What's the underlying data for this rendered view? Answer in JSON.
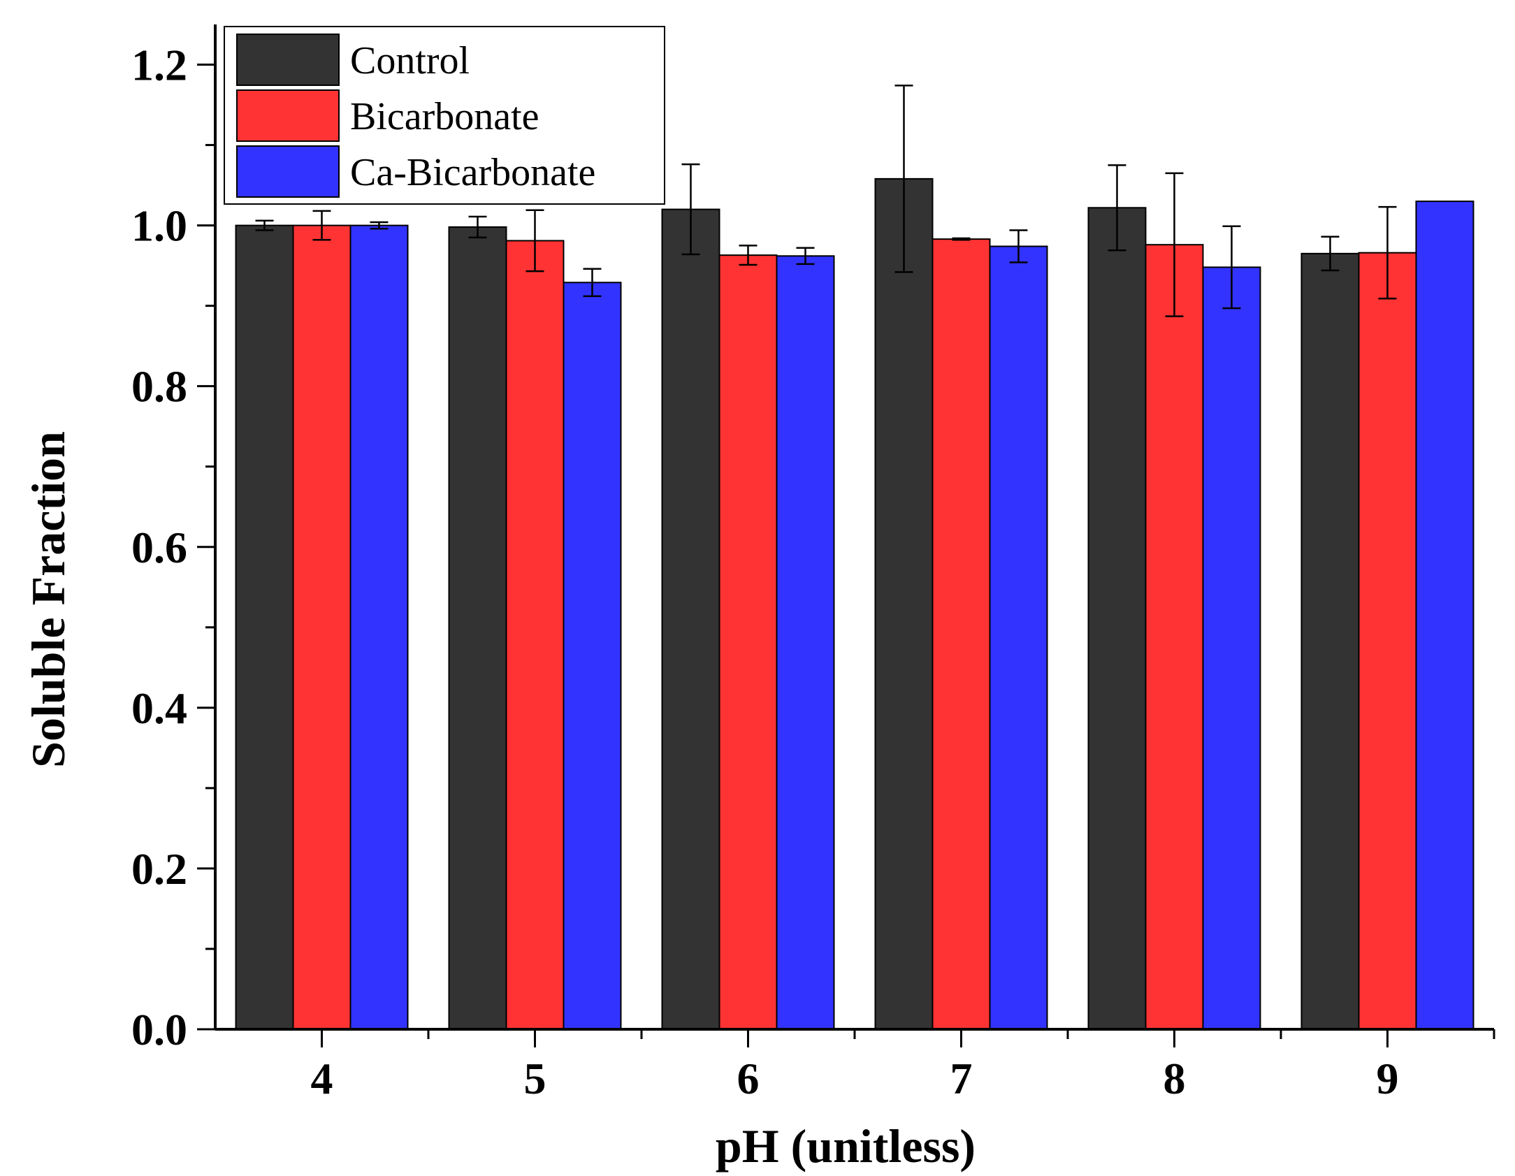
{
  "chart_data": {
    "type": "bar",
    "title": "",
    "xlabel": "pH (unitless)",
    "ylabel": "Soluble Fraction",
    "ylim": [
      0,
      1.25
    ],
    "yticks": [
      "0.0",
      "0.2",
      "0.4",
      "0.6",
      "0.8",
      "1.0",
      "1.2"
    ],
    "categories": [
      "4",
      "5",
      "6",
      "7",
      "8",
      "9"
    ],
    "legend_position": "top-left",
    "grid": false,
    "series": [
      {
        "name": "Control",
        "color": "#333333",
        "values": [
          1.0,
          0.998,
          1.02,
          1.058,
          1.022,
          0.965
        ],
        "errors": [
          0.006,
          0.013,
          0.056,
          0.116,
          0.053,
          0.021
        ]
      },
      {
        "name": "Bicarbonate",
        "color": "#ff3333",
        "values": [
          1.0,
          0.981,
          0.963,
          0.983,
          0.976,
          0.966
        ],
        "errors": [
          0.018,
          0.038,
          0.012,
          0.001,
          0.089,
          0.057
        ]
      },
      {
        "name": "Ca-Bicarbonate",
        "color": "#3333ff",
        "values": [
          1.0,
          0.929,
          0.962,
          0.974,
          0.948,
          1.03
        ],
        "errors": [
          0.004,
          0.017,
          0.01,
          0.02,
          0.051,
          0.0
        ]
      }
    ]
  }
}
